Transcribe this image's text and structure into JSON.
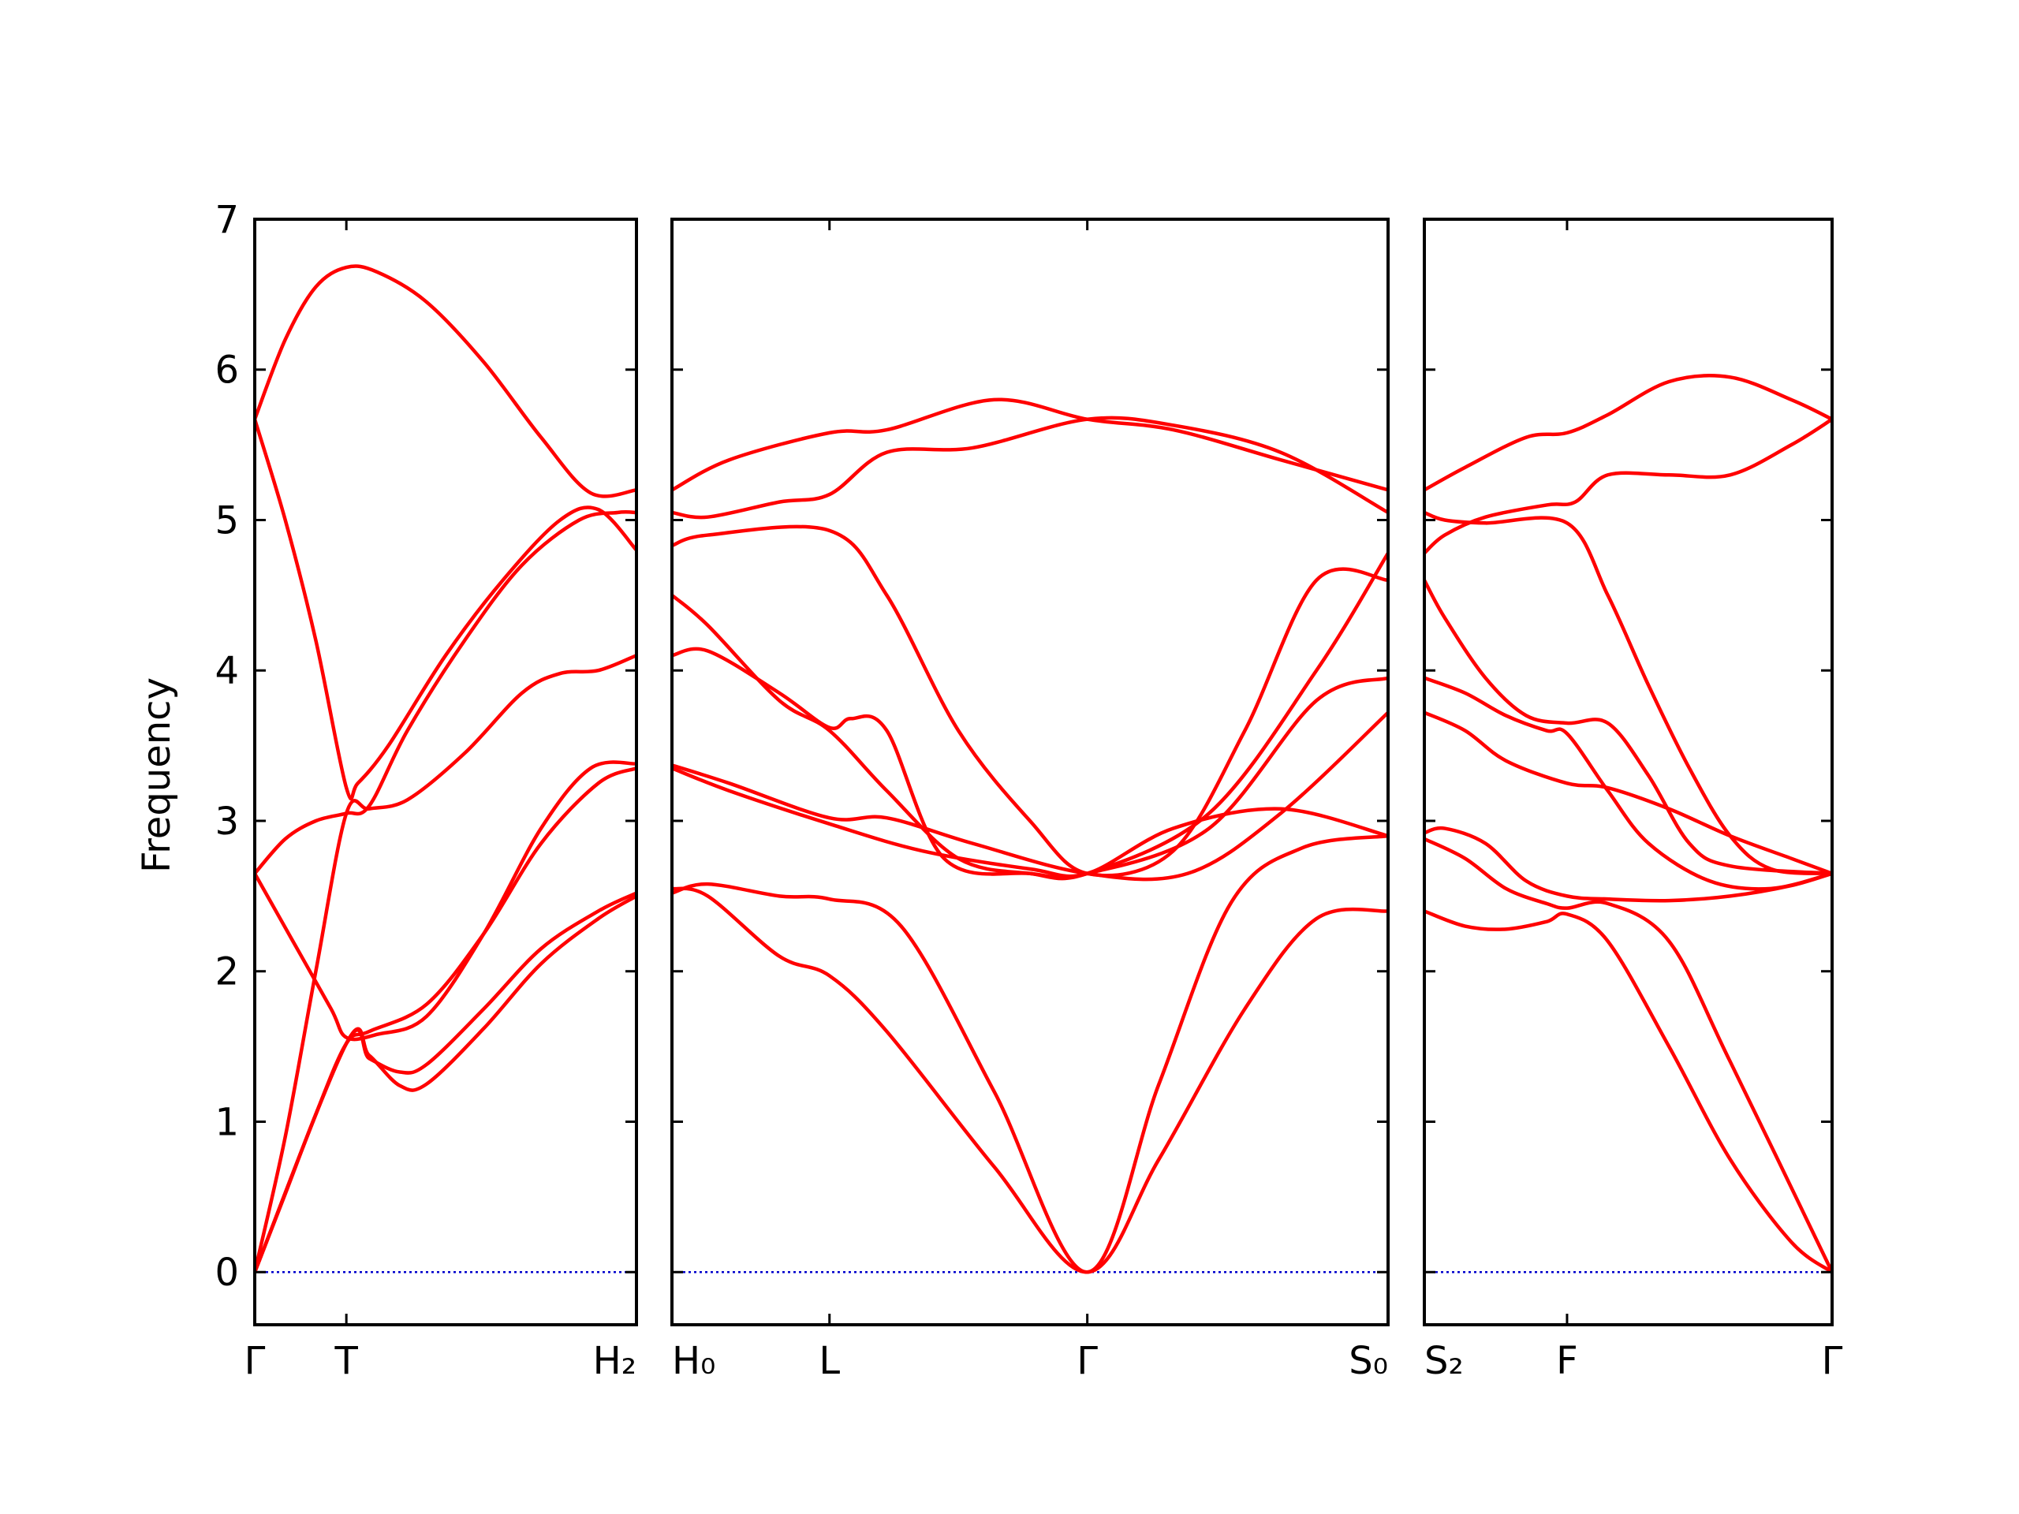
{
  "chart_data": {
    "type": "line",
    "title": "",
    "ylabel": "Frequency",
    "xlabel": "",
    "ylim": [
      -0.35,
      7
    ],
    "yticks": [
      0,
      1,
      2,
      3,
      4,
      5,
      6,
      7
    ],
    "grid": false,
    "colors": {
      "bands": "#ff0000",
      "zero_line": "#0000cc"
    },
    "panels": [
      {
        "name": "Γ-T-H2",
        "xlim": [
          0,
          1
        ],
        "ticks": [
          {
            "x": 0,
            "label": "Γ"
          },
          {
            "x": 0.24,
            "label": "T"
          },
          {
            "x": 1,
            "label": "H₂"
          }
        ],
        "series": [
          {
            "x": [
              0,
              0.08,
              0.16,
              0.24,
              0.32,
              0.45,
              0.6,
              0.75,
              0.88,
              1
            ],
            "values": [
              5.67,
              6.2,
              6.55,
              6.68,
              6.65,
              6.45,
              6.05,
              5.55,
              5.18,
              5.2
            ]
          },
          {
            "x": [
              0,
              0.08,
              0.16,
              0.24,
              0.27,
              0.35,
              0.5,
              0.65,
              0.8,
              0.9,
              1
            ],
            "values": [
              5.67,
              5.0,
              4.2,
              3.22,
              3.25,
              3.5,
              4.1,
              4.6,
              5.0,
              5.07,
              4.8
            ]
          },
          {
            "x": [
              0,
              0.08,
              0.16,
              0.24,
              0.3,
              0.4,
              0.55,
              0.7,
              0.85,
              0.95,
              1
            ],
            "values": [
              2.65,
              2.88,
              3.0,
              3.05,
              3.1,
              3.6,
              4.2,
              4.7,
              5.0,
              5.05,
              5.05
            ]
          },
          {
            "x": [
              0,
              0.08,
              0.16,
              0.24,
              0.3,
              0.4,
              0.55,
              0.7,
              0.8,
              0.9,
              1
            ],
            "values": [
              0.0,
              0.9,
              2.0,
              3.05,
              3.08,
              3.14,
              3.45,
              3.85,
              3.98,
              4.0,
              4.1
            ]
          },
          {
            "x": [
              0,
              0.1,
              0.2,
              0.24,
              0.32,
              0.45,
              0.6,
              0.75,
              0.88,
              1
            ],
            "values": [
              2.65,
              2.2,
              1.75,
              1.56,
              1.58,
              1.7,
              2.25,
              2.95,
              3.35,
              3.38
            ]
          },
          {
            "x": [
              0,
              0.08,
              0.16,
              0.24,
              0.3,
              0.45,
              0.6,
              0.75,
              0.9,
              1
            ],
            "values": [
              0.0,
              0.52,
              1.05,
              1.52,
              1.6,
              1.78,
              2.25,
              2.85,
              3.25,
              3.35
            ]
          },
          {
            "x": [
              0,
              0.24,
              0.3,
              0.38,
              0.45,
              0.6,
              0.75,
              0.9,
              1
            ],
            "values": [
              0.0,
              1.52,
              1.42,
              1.33,
              1.38,
              1.75,
              2.15,
              2.4,
              2.52
            ]
          },
          {
            "x": [
              0,
              0.24,
              0.3,
              0.38,
              0.45,
              0.6,
              0.75,
              0.9,
              1
            ],
            "values": [
              0.0,
              1.52,
              1.44,
              1.24,
              1.25,
              1.62,
              2.05,
              2.35,
              2.5
            ]
          }
        ]
      },
      {
        "name": "H0-L-Γ-S0",
        "xlim": [
          0,
          1
        ],
        "ticks": [
          {
            "x": 0,
            "label": "H₀"
          },
          {
            "x": 0.22,
            "label": "L"
          },
          {
            "x": 0.58,
            "label": "Γ"
          },
          {
            "x": 1,
            "label": "S₀"
          }
        ],
        "series": [
          {
            "x": [
              0,
              0.08,
              0.22,
              0.3,
              0.45,
              0.58,
              0.7,
              0.85,
              1
            ],
            "values": [
              5.2,
              5.4,
              5.58,
              5.6,
              5.8,
              5.67,
              5.6,
              5.4,
              5.2
            ]
          },
          {
            "x": [
              0,
              0.05,
              0.15,
              0.22,
              0.3,
              0.42,
              0.58,
              0.7,
              0.85,
              1
            ],
            "values": [
              5.05,
              5.02,
              5.12,
              5.17,
              5.45,
              5.48,
              5.67,
              5.63,
              5.45,
              5.05
            ]
          },
          {
            "x": [
              0,
              0.05,
              0.22,
              0.3,
              0.4,
              0.5,
              0.58,
              0.7,
              0.8,
              0.9,
              1
            ],
            "values": [
              4.83,
              4.9,
              4.93,
              4.5,
              3.6,
              3.0,
              2.65,
              2.8,
              3.6,
              4.6,
              4.6
            ]
          },
          {
            "x": [
              0,
              0.05,
              0.15,
              0.22,
              0.3,
              0.4,
              0.5,
              0.58,
              0.75,
              0.9,
              1
            ],
            "values": [
              4.5,
              4.3,
              3.8,
              3.6,
              3.2,
              2.75,
              2.65,
              2.65,
              3.05,
              4.0,
              4.78
            ]
          },
          {
            "x": [
              0,
              0.05,
              0.15,
              0.22,
              0.25,
              0.3,
              0.38,
              0.5,
              0.58,
              0.75,
              0.9,
              1
            ],
            "values": [
              4.1,
              4.13,
              3.85,
              3.62,
              3.68,
              3.6,
              2.75,
              2.65,
              2.65,
              2.95,
              3.8,
              3.95
            ]
          },
          {
            "x": [
              0,
              0.08,
              0.22,
              0.3,
              0.42,
              0.58,
              0.72,
              0.85,
              1
            ],
            "values": [
              3.37,
              3.25,
              3.02,
              3.02,
              2.85,
              2.65,
              2.65,
              3.05,
              3.72
            ]
          },
          {
            "x": [
              0,
              0.08,
              0.22,
              0.35,
              0.5,
              0.58,
              0.7,
              0.85,
              1
            ],
            "values": [
              3.35,
              3.2,
              2.98,
              2.8,
              2.68,
              2.65,
              2.95,
              3.08,
              2.9
            ]
          },
          {
            "x": [
              0,
              0.05,
              0.15,
              0.22,
              0.32,
              0.45,
              0.58,
              0.68,
              0.78,
              0.88,
              1
            ],
            "values": [
              2.52,
              2.58,
              2.5,
              2.48,
              2.3,
              1.2,
              0.0,
              1.25,
              2.45,
              2.82,
              2.9
            ]
          },
          {
            "x": [
              0,
              0.05,
              0.15,
              0.22,
              0.3,
              0.45,
              0.58,
              0.68,
              0.8,
              0.9,
              1
            ],
            "values": [
              2.55,
              2.5,
              2.1,
              1.97,
              1.6,
              0.7,
              0.0,
              0.75,
              1.75,
              2.35,
              2.4
            ]
          }
        ]
      },
      {
        "name": "S2-F-Γ",
        "xlim": [
          0,
          1
        ],
        "ticks": [
          {
            "x": 0,
            "label": "S₂"
          },
          {
            "x": 0.35,
            "label": "F"
          },
          {
            "x": 1,
            "label": "Γ"
          }
        ],
        "series": [
          {
            "x": [
              0,
              0.1,
              0.25,
              0.35,
              0.45,
              0.6,
              0.75,
              0.9,
              1
            ],
            "values": [
              5.2,
              5.35,
              5.55,
              5.58,
              5.7,
              5.92,
              5.95,
              5.8,
              5.67
            ]
          },
          {
            "x": [
              0,
              0.05,
              0.15,
              0.3,
              0.37,
              0.45,
              0.6,
              0.75,
              0.9,
              1
            ],
            "values": [
              4.78,
              4.9,
              5.02,
              5.1,
              5.12,
              5.3,
              5.3,
              5.3,
              5.5,
              5.67
            ]
          },
          {
            "x": [
              0,
              0.05,
              0.15,
              0.35,
              0.45,
              0.55,
              0.65,
              0.75,
              0.85,
              1
            ],
            "values": [
              5.05,
              5.0,
              4.98,
              4.98,
              4.5,
              3.9,
              3.35,
              2.9,
              2.68,
              2.65
            ]
          },
          {
            "x": [
              0,
              0.05,
              0.15,
              0.25,
              0.35,
              0.45,
              0.55,
              0.65,
              0.75,
              1
            ],
            "values": [
              4.6,
              4.35,
              3.95,
              3.7,
              3.65,
              3.65,
              3.3,
              2.85,
              2.7,
              2.65
            ]
          },
          {
            "x": [
              0,
              0.1,
              0.2,
              0.3,
              0.35,
              0.45,
              0.55,
              0.7,
              0.85,
              1
            ],
            "values": [
              3.95,
              3.85,
              3.7,
              3.6,
              3.58,
              3.2,
              2.85,
              2.6,
              2.55,
              2.65
            ]
          },
          {
            "x": [
              0,
              0.1,
              0.2,
              0.35,
              0.45,
              0.6,
              0.75,
              0.9,
              1
            ],
            "values": [
              3.72,
              3.6,
              3.4,
              3.25,
              3.22,
              3.08,
              2.9,
              2.75,
              2.65
            ]
          },
          {
            "x": [
              0,
              0.05,
              0.15,
              0.25,
              0.35,
              0.45,
              0.6,
              0.75,
              0.9,
              1
            ],
            "values": [
              2.92,
              2.95,
              2.85,
              2.6,
              2.5,
              2.48,
              2.47,
              2.5,
              2.57,
              2.65
            ]
          },
          {
            "x": [
              0,
              0.1,
              0.2,
              0.3,
              0.35,
              0.45,
              0.6,
              0.75,
              1
            ],
            "values": [
              2.88,
              2.75,
              2.55,
              2.45,
              2.42,
              2.45,
              2.2,
              1.4,
              0.0
            ]
          },
          {
            "x": [
              0,
              0.1,
              0.2,
              0.3,
              0.35,
              0.45,
              0.6,
              0.75,
              0.9,
              1
            ],
            "values": [
              2.4,
              2.3,
              2.28,
              2.33,
              2.38,
              2.2,
              1.5,
              0.75,
              0.2,
              0.0
            ]
          }
        ]
      }
    ]
  }
}
